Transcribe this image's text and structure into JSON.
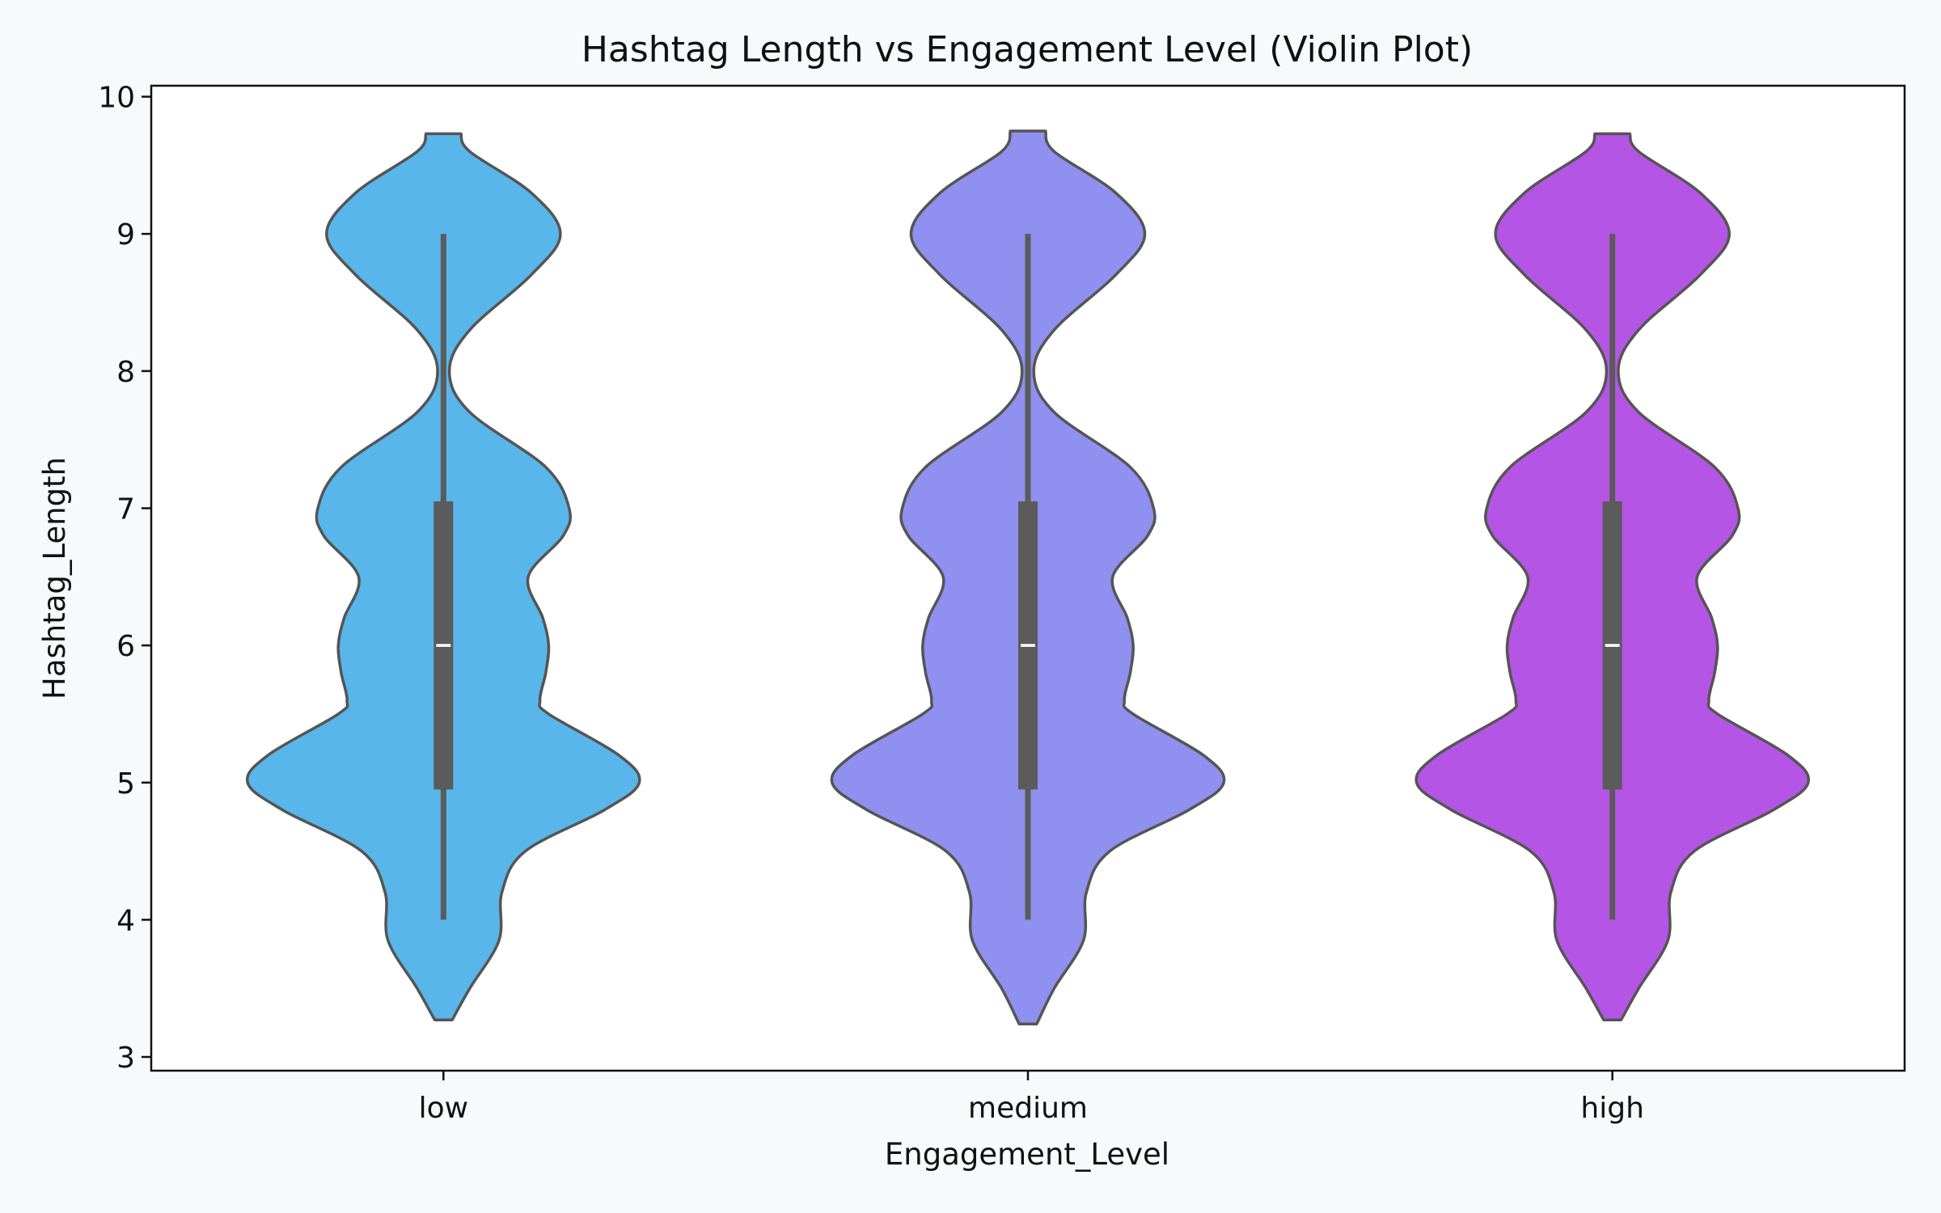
{
  "chart_data": {
    "type": "violin",
    "title": "Hashtag Length vs Engagement Level (Violin Plot)",
    "xlabel": "Engagement_Level",
    "ylabel": "Hashtag_Length",
    "categories": [
      "low",
      "medium",
      "high"
    ],
    "ylim": [
      2.9,
      10.08
    ],
    "yticks": [
      3,
      4,
      5,
      6,
      7,
      8,
      9,
      10
    ],
    "grid": false,
    "series": [
      {
        "category": "low",
        "color": "#58b6ea",
        "outline_color": "#555555",
        "stats": {
          "min": 4,
          "q1": 4.95,
          "median": 6,
          "q3": 7.05,
          "max": 9
        },
        "density_profile": [
          [
            3.27,
            0.03
          ],
          [
            3.5,
            0.09
          ],
          [
            3.85,
            0.19
          ],
          [
            4.2,
            0.2
          ],
          [
            4.5,
            0.28
          ],
          [
            4.8,
            0.55
          ],
          [
            5.0,
            0.67
          ],
          [
            5.2,
            0.6
          ],
          [
            5.5,
            0.36
          ],
          [
            5.6,
            0.33
          ],
          [
            5.8,
            0.35
          ],
          [
            6.0,
            0.36
          ],
          [
            6.2,
            0.34
          ],
          [
            6.5,
            0.29
          ],
          [
            6.8,
            0.41
          ],
          [
            7.0,
            0.43
          ],
          [
            7.3,
            0.35
          ],
          [
            7.7,
            0.09
          ],
          [
            8.0,
            0.02
          ],
          [
            8.3,
            0.09
          ],
          [
            8.7,
            0.3
          ],
          [
            9.0,
            0.4
          ],
          [
            9.3,
            0.3
          ],
          [
            9.6,
            0.09
          ],
          [
            9.73,
            0.06
          ]
        ]
      },
      {
        "category": "medium",
        "color": "#8f90ef",
        "outline_color": "#555555",
        "stats": {
          "min": 4,
          "q1": 4.95,
          "median": 6,
          "q3": 7.05,
          "max": 9
        },
        "density_profile": [
          [
            3.24,
            0.03
          ],
          [
            3.5,
            0.09
          ],
          [
            3.85,
            0.19
          ],
          [
            4.2,
            0.2
          ],
          [
            4.5,
            0.28
          ],
          [
            4.8,
            0.55
          ],
          [
            5.0,
            0.67
          ],
          [
            5.2,
            0.6
          ],
          [
            5.5,
            0.36
          ],
          [
            5.6,
            0.33
          ],
          [
            5.8,
            0.35
          ],
          [
            6.0,
            0.36
          ],
          [
            6.2,
            0.34
          ],
          [
            6.5,
            0.29
          ],
          [
            6.8,
            0.41
          ],
          [
            7.0,
            0.43
          ],
          [
            7.3,
            0.35
          ],
          [
            7.7,
            0.09
          ],
          [
            8.0,
            0.02
          ],
          [
            8.3,
            0.09
          ],
          [
            8.7,
            0.3
          ],
          [
            9.0,
            0.4
          ],
          [
            9.3,
            0.3
          ],
          [
            9.6,
            0.09
          ],
          [
            9.75,
            0.06
          ]
        ]
      },
      {
        "category": "high",
        "color": "#b555e5",
        "outline_color": "#555555",
        "stats": {
          "min": 4,
          "q1": 4.95,
          "median": 6,
          "q3": 7.05,
          "max": 9
        },
        "density_profile": [
          [
            3.27,
            0.03
          ],
          [
            3.5,
            0.09
          ],
          [
            3.85,
            0.19
          ],
          [
            4.2,
            0.2
          ],
          [
            4.5,
            0.28
          ],
          [
            4.8,
            0.55
          ],
          [
            5.0,
            0.67
          ],
          [
            5.2,
            0.6
          ],
          [
            5.5,
            0.36
          ],
          [
            5.6,
            0.33
          ],
          [
            5.8,
            0.35
          ],
          [
            6.0,
            0.36
          ],
          [
            6.2,
            0.34
          ],
          [
            6.5,
            0.29
          ],
          [
            6.8,
            0.41
          ],
          [
            7.0,
            0.43
          ],
          [
            7.3,
            0.35
          ],
          [
            7.7,
            0.09
          ],
          [
            8.0,
            0.02
          ],
          [
            8.3,
            0.09
          ],
          [
            8.7,
            0.3
          ],
          [
            9.0,
            0.4
          ],
          [
            9.3,
            0.3
          ],
          [
            9.6,
            0.09
          ],
          [
            9.73,
            0.06
          ]
        ]
      }
    ]
  }
}
